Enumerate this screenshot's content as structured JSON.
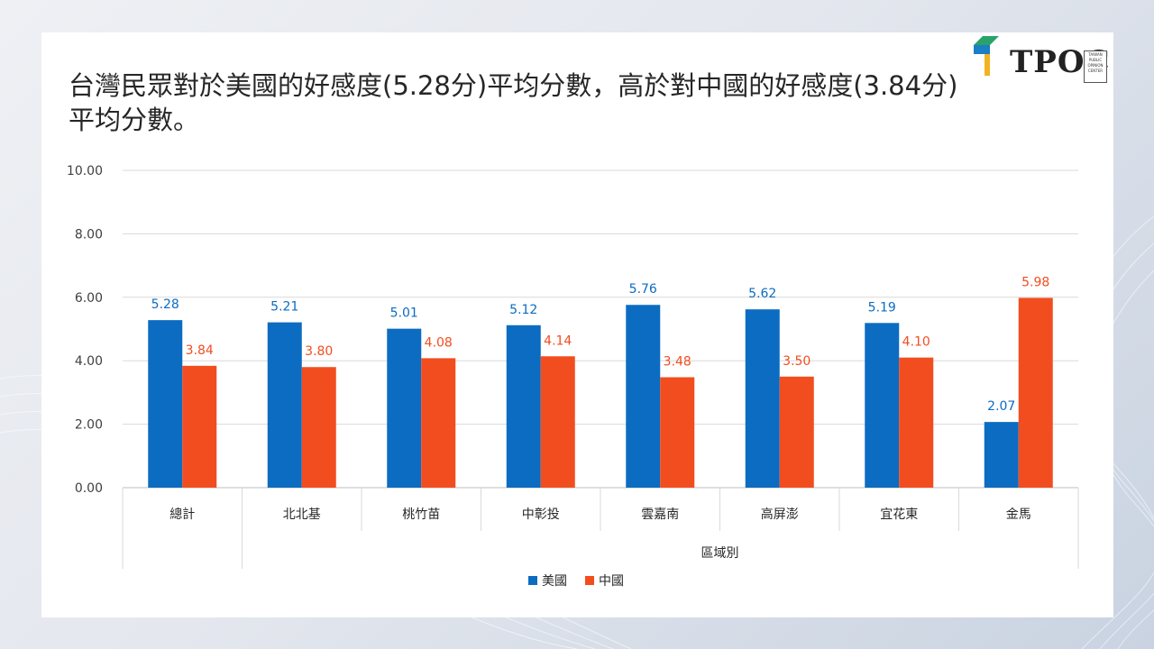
{
  "title": "台灣民眾對於美國的好感度(5.28分)平均分數，高於對中國的好感度(3.84分)平均分數。",
  "logo": {
    "text": "TPOC",
    "subtext": "TAIWAN PUBLIC OPINION CENTER"
  },
  "colors": {
    "usa": "#0C6CC1",
    "china": "#F24D1F"
  },
  "chart_data": {
    "type": "bar",
    "title": "",
    "xlabel": "區域別",
    "ylabel": "",
    "ylim": [
      0,
      10
    ],
    "yticks": [
      "0.00",
      "2.00",
      "4.00",
      "6.00",
      "8.00",
      "10.00"
    ],
    "grid": true,
    "legend_position": "bottom",
    "categories": [
      "總計",
      "北北基",
      "桃竹苗",
      "中彰投",
      "雲嘉南",
      "高屏澎",
      "宜花東",
      "金馬"
    ],
    "series": [
      {
        "name": "美國",
        "values": [
          5.28,
          5.21,
          5.01,
          5.12,
          5.76,
          5.62,
          5.19,
          2.07
        ],
        "labels": [
          "5.28",
          "5.21",
          "5.01",
          "5.12",
          "5.76",
          "5.62",
          "5.19",
          "2.07"
        ]
      },
      {
        "name": "中國",
        "values": [
          3.84,
          3.8,
          4.08,
          4.14,
          3.48,
          3.5,
          4.1,
          5.98
        ],
        "labels": [
          "3.84",
          "3.80",
          "4.08",
          "4.14",
          "3.48",
          "3.50",
          "4.10",
          "5.98"
        ]
      }
    ]
  }
}
